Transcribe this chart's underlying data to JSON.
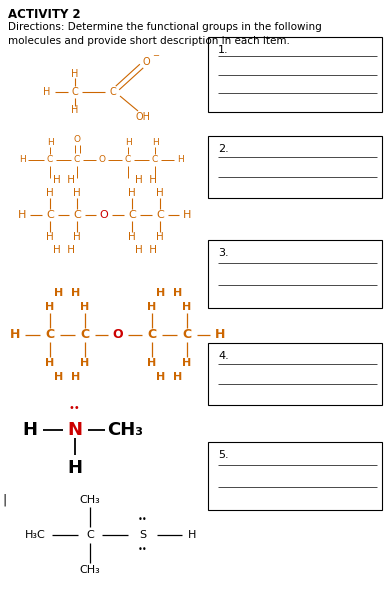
{
  "title": "ACTIVITY 2",
  "dir1": "Directions: Determine the functional groups in the following",
  "dir2": "molecules and provide short description in each item.",
  "bg": "#ffffff",
  "oc": "#cc6600",
  "rc": "#cc0000",
  "bk": "#000000",
  "box_nums": [
    "1.",
    "2.",
    "3.",
    "4.",
    "5."
  ],
  "figw": 3.9,
  "figh": 5.97,
  "dpi": 100
}
